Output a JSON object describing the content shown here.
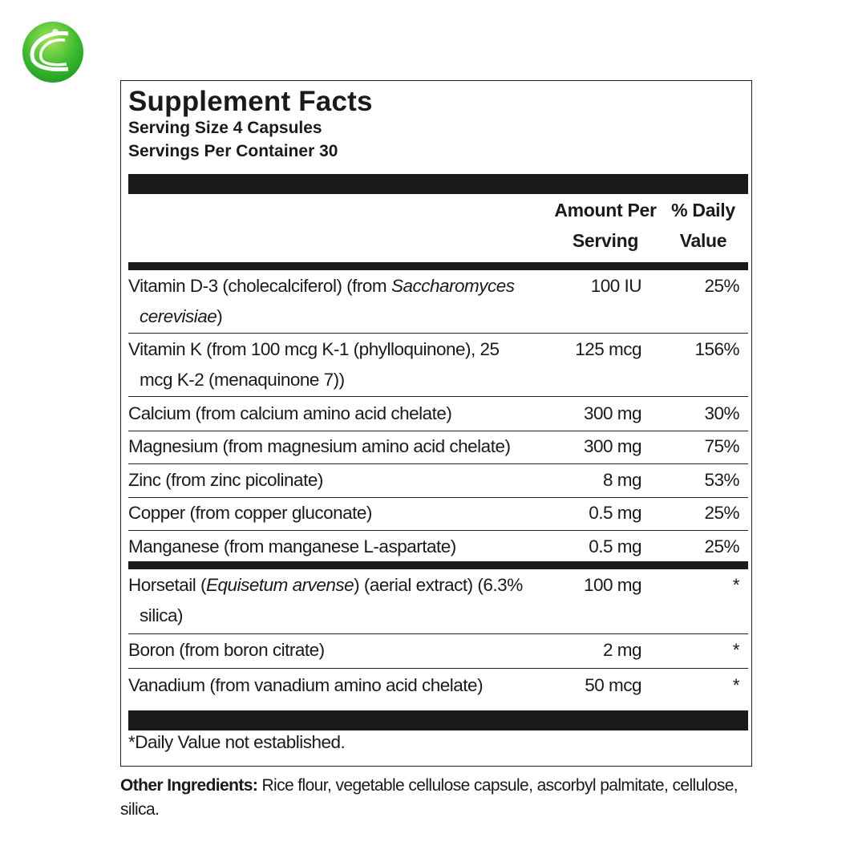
{
  "logo": {
    "icon": "green-globe-logo",
    "colors": [
      "#2db52b",
      "#8fd94a"
    ]
  },
  "panel": {
    "title": "Supplement Facts",
    "serving_size": "Serving Size 4 Capsules",
    "servings_per_container": "Servings Per Container 30",
    "header": {
      "amount_1": "Amount Per",
      "amount_2": "Serving",
      "dv_1": "% Daily",
      "dv_2": "Value"
    },
    "rows": [
      {
        "name_pre": "Vitamin D-3 (cholecalciferol) (from ",
        "name_italic": "Saccharomyces",
        "name_line2_italic": "cerevisiae",
        "name_post": ")",
        "amount": "100 IU",
        "dv": "25%"
      },
      {
        "name_line1": "Vitamin K (from 100 mcg K-1 (phylloquinone), 25",
        "name_line2": "mcg K-2 (menaquinone 7))",
        "amount": "125 mcg",
        "dv": "156%"
      },
      {
        "name": "Calcium (from calcium amino acid chelate)",
        "amount": "300 mg",
        "dv": "30%"
      },
      {
        "name": "Magnesium (from magnesium amino acid chelate)",
        "amount": "300 mg",
        "dv": "75%"
      },
      {
        "name": "Zinc (from zinc picolinate)",
        "amount": "8 mg",
        "dv": "53%"
      },
      {
        "name": "Copper (from copper gluconate)",
        "amount": "0.5 mg",
        "dv": "25%"
      },
      {
        "name": "Manganese (from manganese L-aspartate)",
        "amount": "0.5 mg",
        "dv": "25%"
      },
      {
        "name_pre": "Horsetail (",
        "name_italic": "Equisetum arvense",
        "name_post": ") (aerial extract) (6.3%",
        "name_line2": "silica)",
        "amount": "100 mg",
        "dv": "*"
      },
      {
        "name": "Boron (from boron citrate)",
        "amount": "2 mg",
        "dv": "*"
      },
      {
        "name": "Vanadium (from vanadium amino acid chelate)",
        "amount": "50 mcg",
        "dv": "*"
      }
    ],
    "footnote": "*Daily Value not established."
  },
  "other_ingredients": {
    "label": "Other Ingredients:",
    "text": " Rice flour, vegetable cellulose capsule, ascorbyl palmitate, cellulose, silica."
  }
}
